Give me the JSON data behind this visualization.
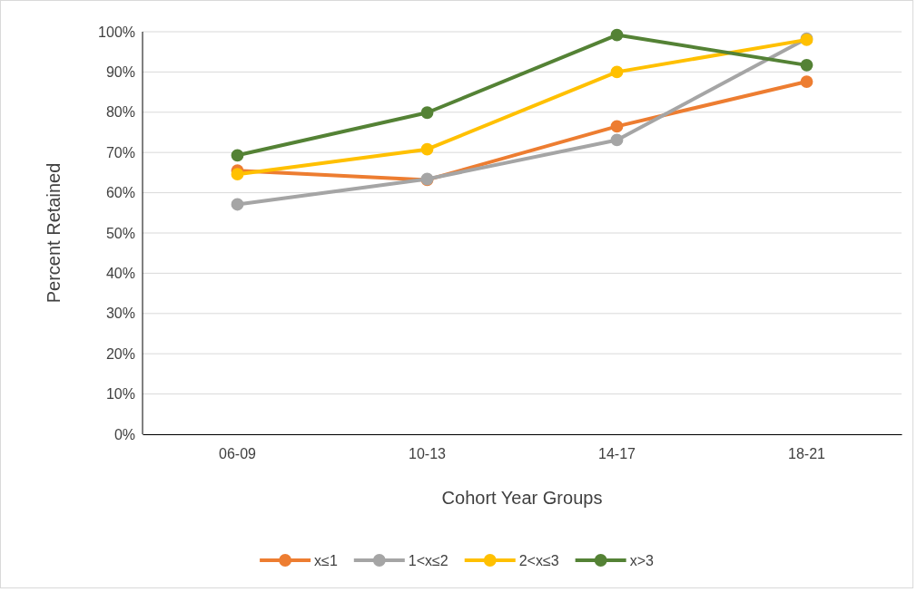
{
  "chart_data": {
    "type": "line",
    "xlabel": "Cohort Year Groups",
    "ylabel": "Percent Retained",
    "categories": [
      "06-09",
      "10-13",
      "14-17",
      "18-21"
    ],
    "series": [
      {
        "name": "x≤1",
        "color": "#ed7d31",
        "values": [
          65.5,
          63.2,
          76.5,
          87.6
        ]
      },
      {
        "name": "1<x≤2",
        "color": "#a5a5a5",
        "values": [
          57.1,
          63.4,
          73.1,
          98.3
        ]
      },
      {
        "name": "2<x≤3",
        "color": "#ffc000",
        "values": [
          64.6,
          70.8,
          90.0,
          98.0
        ]
      },
      {
        "name": "x>3",
        "color": "#548235",
        "values": [
          69.3,
          79.9,
          99.2,
          91.7
        ]
      }
    ],
    "ylim": [
      0,
      100
    ],
    "yticks": [
      {
        "value": 0,
        "label": "0%"
      },
      {
        "value": 10,
        "label": "10%"
      },
      {
        "value": 20,
        "label": "20%"
      },
      {
        "value": 30,
        "label": "30%"
      },
      {
        "value": 40,
        "label": "40%"
      },
      {
        "value": 50,
        "label": "50%"
      },
      {
        "value": 60,
        "label": "60%"
      },
      {
        "value": 70,
        "label": "70%"
      },
      {
        "value": 80,
        "label": "80%"
      },
      {
        "value": 90,
        "label": "90%"
      },
      {
        "value": 100,
        "label": "100%"
      }
    ],
    "grid": "y",
    "legend": "bottom",
    "marker": "circle",
    "line_style": "solid"
  }
}
